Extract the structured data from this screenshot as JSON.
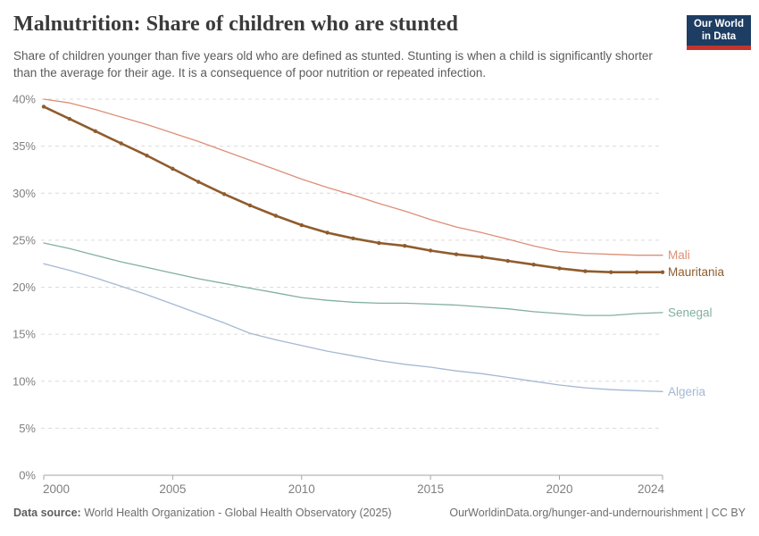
{
  "header": {
    "title": "Malnutrition: Share of children who are stunted",
    "subtitle": "Share of children younger than five years old who are defined as stunted. Stunting is when a child is significantly shorter than the average for their age. It is a consequence of poor nutrition or repeated infection."
  },
  "logo": {
    "line1": "Our World",
    "line2": "in Data",
    "background": "#1d3d63",
    "bar_color": "#c5342b"
  },
  "footer": {
    "source_label": "Data source:",
    "source_text": " World Health Organization - Global Health Observatory (2025)",
    "attribution": "OurWorldinData.org/hunger-and-undernourishment | CC BY"
  },
  "chart_data": {
    "type": "line",
    "title": "Malnutrition: Share of children who are stunted",
    "xlabel": "",
    "ylabel": "",
    "x_range": [
      2000,
      2024
    ],
    "ylim": [
      0,
      40
    ],
    "y_ticks": [
      0,
      5,
      10,
      15,
      20,
      25,
      30,
      35,
      40
    ],
    "y_tick_suffix": "%",
    "x_ticks": [
      2000,
      2005,
      2010,
      2015,
      2020,
      2024
    ],
    "grid": true,
    "gridline_color": "#dcdcdc",
    "axis_color": "#a5a5a5",
    "tick_label_color": "#808080",
    "legend_position": "right-of-line-ends",
    "x": [
      2000,
      2001,
      2002,
      2003,
      2004,
      2005,
      2006,
      2007,
      2008,
      2009,
      2010,
      2011,
      2012,
      2013,
      2014,
      2015,
      2016,
      2017,
      2018,
      2019,
      2020,
      2021,
      2022,
      2023,
      2024
    ],
    "series": [
      {
        "name": "Mali",
        "color": "#dd8f76",
        "width": 1.3,
        "markers": false,
        "values": [
          40.0,
          39.6,
          38.9,
          38.1,
          37.3,
          36.4,
          35.5,
          34.5,
          33.5,
          32.5,
          31.5,
          30.6,
          29.8,
          28.9,
          28.1,
          27.2,
          26.4,
          25.8,
          25.1,
          24.4,
          23.8,
          23.6,
          23.5,
          23.4,
          23.4
        ]
      },
      {
        "name": "Mauritania",
        "color": "#8f5c2e",
        "width": 2.6,
        "markers": true,
        "values": [
          39.2,
          37.9,
          36.6,
          35.3,
          34.0,
          32.6,
          31.2,
          29.9,
          28.7,
          27.6,
          26.6,
          25.8,
          25.2,
          24.7,
          24.4,
          23.9,
          23.5,
          23.2,
          22.8,
          22.4,
          22.0,
          21.7,
          21.6,
          21.6,
          21.6
        ]
      },
      {
        "name": "Senegal",
        "color": "#82b0a0",
        "width": 1.3,
        "markers": false,
        "values": [
          24.7,
          24.1,
          23.4,
          22.7,
          22.1,
          21.5,
          20.9,
          20.4,
          19.9,
          19.4,
          18.9,
          18.6,
          18.4,
          18.3,
          18.3,
          18.2,
          18.1,
          17.9,
          17.7,
          17.4,
          17.2,
          17.0,
          17.0,
          17.2,
          17.3
        ]
      },
      {
        "name": "Algeria",
        "color": "#a5b8d2",
        "width": 1.3,
        "markers": false,
        "values": [
          22.5,
          21.8,
          21.0,
          20.1,
          19.2,
          18.2,
          17.2,
          16.2,
          15.1,
          14.4,
          13.8,
          13.2,
          12.7,
          12.2,
          11.8,
          11.5,
          11.1,
          10.8,
          10.4,
          10.0,
          9.6,
          9.3,
          9.1,
          9.0,
          8.9
        ]
      }
    ]
  }
}
